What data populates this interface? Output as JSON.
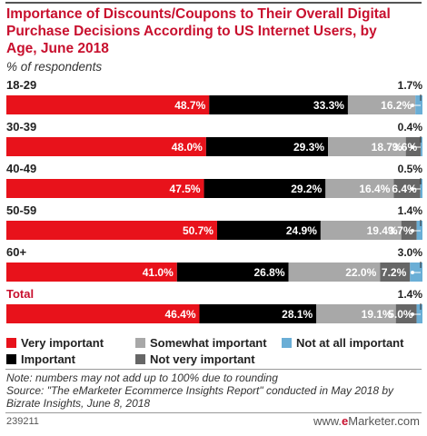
{
  "header": {
    "title": "Importance of Discounts/Coupons to Their Overall Digital Purchase Decisions According to US Internet Users, by Age, June 2018",
    "subtitle": "% of respondents"
  },
  "chart_data": {
    "type": "bar",
    "orientation": "horizontal-stacked",
    "categories": [
      "18-29",
      "30-39",
      "40-49",
      "50-59",
      "60+",
      "Total"
    ],
    "series": [
      {
        "name": "Very important",
        "color": "#e8121b",
        "values": [
          48.7,
          48.0,
          47.5,
          50.7,
          41.0,
          46.4
        ],
        "labels": [
          "48.7%",
          "48.0%",
          "47.5%",
          "50.7%",
          "41.0%",
          "46.4%"
        ]
      },
      {
        "name": "Important",
        "color": "#000000",
        "values": [
          33.3,
          29.3,
          29.2,
          24.9,
          26.8,
          28.1
        ],
        "labels": [
          "33.3%",
          "29.3%",
          "29.2%",
          "24.9%",
          "26.8%",
          "28.1%"
        ]
      },
      {
        "name": "Somewhat important",
        "color": "#a8a8a8",
        "values": [
          16.2,
          18.7,
          16.4,
          19.4,
          22.0,
          19.1
        ],
        "labels": [
          "16.2%",
          "18.7%",
          "16.4%",
          "19.4%",
          "22.0%",
          "19.1%"
        ]
      },
      {
        "name": "Not very important",
        "color": "#666666",
        "values": [
          0.0,
          3.6,
          6.4,
          3.7,
          7.2,
          5.0
        ],
        "labels": [
          "",
          "3.6%",
          "6.4%",
          "3.7%",
          "7.2%",
          "5.0%"
        ]
      },
      {
        "name": "Not at all important",
        "color": "#6aaed6",
        "values": [
          1.7,
          0.4,
          0.5,
          1.4,
          3.0,
          1.4
        ],
        "labels": [
          "1.7%",
          "0.4%",
          "0.5%",
          "1.4%",
          "3.0%",
          "1.4%"
        ]
      }
    ]
  },
  "legend": {
    "items": [
      {
        "label": "Very important",
        "color": "#e8121b"
      },
      {
        "label": "Somewhat important",
        "color": "#a8a8a8"
      },
      {
        "label": "Not at all important",
        "color": "#6aaed6"
      },
      {
        "label": "Important",
        "color": "#000000"
      },
      {
        "label": "Not very important",
        "color": "#666666"
      }
    ]
  },
  "footer": {
    "note": "Note: numbers may not add up to 100% due to rounding",
    "source": "Source: \"The eMarketer Ecommerce Insights Report\" conducted in May 2018 by Bizrate Insights, June 8, 2018",
    "chart_id": "239211",
    "brand_prefix": "www.",
    "brand_e": "e",
    "brand_rest": "Marketer.com"
  }
}
